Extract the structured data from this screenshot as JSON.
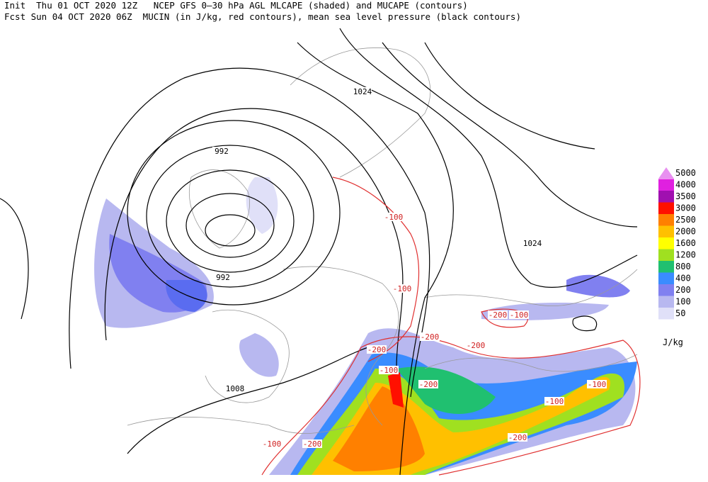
{
  "header": {
    "line1": "Init  Thu 01 OCT 2020 12Z   NCEP GFS 0–30 hPa AGL MLCAPE (shaded) and MUCAPE (contours)",
    "line2": "Fcst Sun 04 OCT 2020 06Z  MUCIN (in J/kg, red contours), mean sea level pressure (black contours)"
  },
  "legend": {
    "entries": [
      {
        "label": "5000",
        "color": "#e890f0"
      },
      {
        "label": "4000",
        "color": "#e020e0"
      },
      {
        "label": "3500",
        "color": "#a010b0"
      },
      {
        "label": "3000",
        "color": "#ff1000"
      },
      {
        "label": "2500",
        "color": "#ff8000"
      },
      {
        "label": "2000",
        "color": "#ffc000"
      },
      {
        "label": "1600",
        "color": "#ffff00"
      },
      {
        "label": "1200",
        "color": "#a0e020"
      },
      {
        "label": "800",
        "color": "#20c070"
      },
      {
        "label": "400",
        "color": "#3a8cff"
      },
      {
        "label": "200",
        "color": "#8080f0"
      },
      {
        "label": "100",
        "color": "#b8b8f0"
      },
      {
        "label": "50",
        "color": "#e0e0f8"
      }
    ],
    "unit": "J/kg"
  },
  "contour_labels": {
    "pressure": [
      "992",
      "992",
      "1024",
      "1024",
      "1008"
    ],
    "mucin": [
      "-100",
      "-100",
      "-200",
      "-100",
      "-200",
      "-200",
      "-200",
      "-100",
      "-200",
      "-100",
      "-100",
      "-200",
      "-100",
      "-200"
    ]
  }
}
